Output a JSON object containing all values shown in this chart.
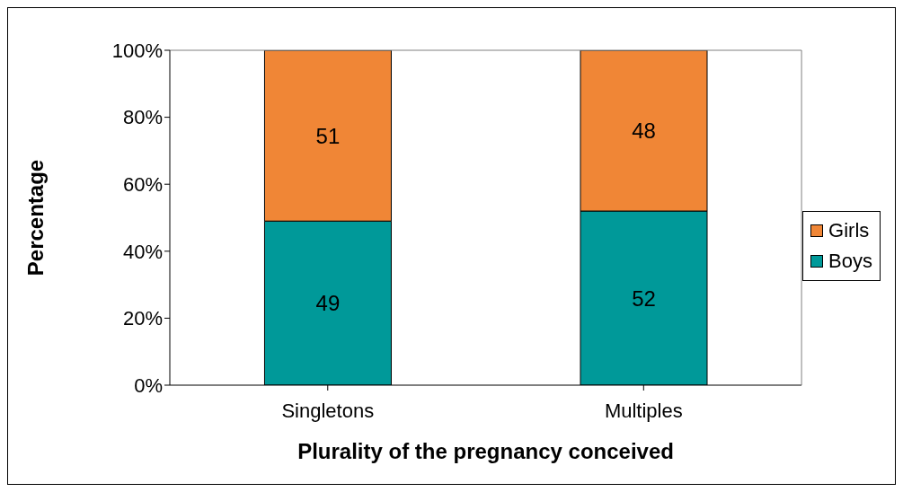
{
  "chart_data": {
    "type": "bar",
    "stacked": true,
    "xlabel": "Plurality of the pregnancy conceived",
    "ylabel": "Percentage",
    "categories": [
      "Singletons",
      "Multiples"
    ],
    "series": [
      {
        "name": "Boys",
        "color": "#009999",
        "values": [
          49,
          52
        ]
      },
      {
        "name": "Girls",
        "color": "#f08636",
        "values": [
          51,
          48
        ]
      }
    ],
    "ylim": [
      0,
      100
    ],
    "yticks": [
      {
        "value": 0,
        "label": "0%"
      },
      {
        "value": 20,
        "label": "20%"
      },
      {
        "value": 40,
        "label": "40%"
      },
      {
        "value": 60,
        "label": "60%"
      },
      {
        "value": 80,
        "label": "80%"
      },
      {
        "value": 100,
        "label": "100%"
      }
    ],
    "data_labels": true,
    "legend": "right",
    "grid": false
  }
}
